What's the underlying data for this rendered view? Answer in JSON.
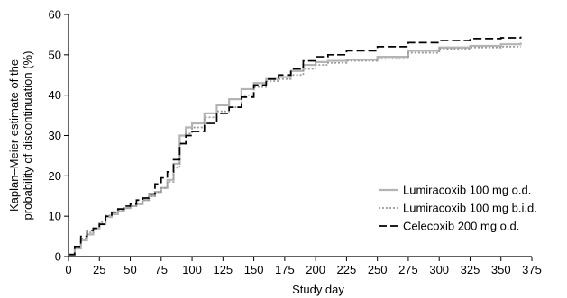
{
  "chart_data": {
    "type": "line",
    "title": "",
    "xlabel": "Study day",
    "ylabel_line1": "Kaplan–Meier estimate of the",
    "ylabel_line2": "probability of discontinuation (%)",
    "xlim": [
      0,
      375
    ],
    "ylim": [
      0,
      60
    ],
    "xticks": [
      0,
      25,
      50,
      75,
      100,
      125,
      150,
      175,
      200,
      225,
      250,
      275,
      300,
      325,
      350,
      375
    ],
    "yticks": [
      0,
      10,
      20,
      30,
      40,
      50,
      60
    ],
    "grid": false,
    "legend_position": "lower-right",
    "series": [
      {
        "name": "Lumiracoxib 100 mg o.d.",
        "color": "#b4b4b4",
        "style": "solid",
        "x": [
          0,
          5,
          10,
          15,
          20,
          25,
          30,
          35,
          40,
          45,
          50,
          55,
          60,
          65,
          70,
          75,
          80,
          85,
          90,
          95,
          100,
          110,
          120,
          130,
          140,
          150,
          160,
          170,
          180,
          190,
          200,
          210,
          225,
          250,
          275,
          300,
          325,
          350,
          366
        ],
        "y": [
          0.5,
          2,
          4,
          5.5,
          7,
          8,
          9.8,
          10.5,
          11.2,
          12,
          12.5,
          13,
          14,
          15,
          16,
          17,
          19,
          23,
          30,
          32,
          33,
          35.5,
          37.5,
          39,
          41.5,
          43,
          44,
          44.5,
          46,
          47.5,
          48.2,
          48.5,
          48.8,
          49.5,
          51,
          51.8,
          52.2,
          52.6,
          53
        ]
      },
      {
        "name": "Lumiracoxib 100 mg b.i.d.",
        "color": "#9a9a9a",
        "style": "dotted",
        "x": [
          0,
          5,
          10,
          15,
          20,
          25,
          30,
          35,
          40,
          45,
          50,
          55,
          60,
          65,
          70,
          75,
          80,
          85,
          90,
          95,
          100,
          110,
          120,
          130,
          140,
          150,
          160,
          170,
          180,
          190,
          200,
          210,
          225,
          250,
          275,
          300,
          325,
          350,
          366
        ],
        "y": [
          0.5,
          2.5,
          4.5,
          6,
          7,
          8.5,
          10.2,
          11,
          11.5,
          12,
          12.5,
          13.2,
          14,
          15,
          16,
          17,
          18.5,
          22,
          28,
          30.5,
          32,
          34.5,
          36,
          37,
          40,
          42,
          43.5,
          44,
          45,
          46.5,
          47.5,
          48,
          48.5,
          49,
          50.5,
          51.5,
          51.8,
          52,
          52
        ]
      },
      {
        "name": "Celecoxib 200 mg o.d.",
        "color": "#000000",
        "style": "dashed",
        "x": [
          0,
          5,
          10,
          15,
          20,
          25,
          30,
          35,
          40,
          45,
          50,
          55,
          60,
          65,
          70,
          75,
          80,
          85,
          90,
          95,
          100,
          110,
          120,
          130,
          140,
          150,
          160,
          170,
          180,
          190,
          200,
          210,
          225,
          250,
          275,
          300,
          325,
          350,
          366
        ],
        "y": [
          0.5,
          2.5,
          5,
          6.5,
          7,
          8,
          10,
          11,
          11.8,
          12.5,
          13,
          14,
          14.5,
          15.5,
          18,
          19.5,
          21,
          24,
          28,
          30,
          31,
          33,
          35.5,
          37,
          39.5,
          42.5,
          44,
          45,
          46.5,
          48.5,
          49.5,
          50,
          51,
          52,
          53,
          53.5,
          54,
          54.2,
          54.5
        ]
      }
    ]
  }
}
